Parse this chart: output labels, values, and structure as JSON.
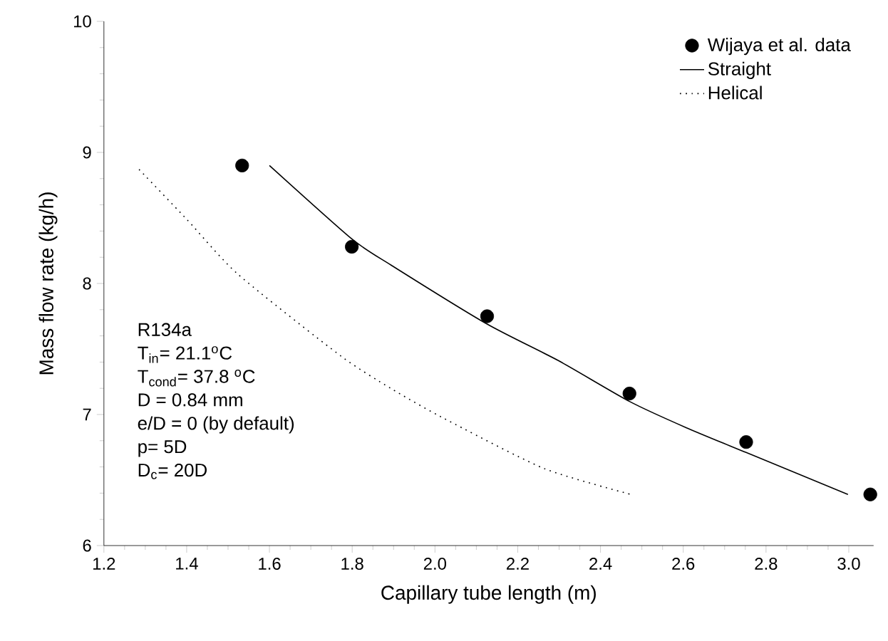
{
  "chart_data": {
    "type": "line",
    "xlabel": "Capillary tube length (m)",
    "ylabel": "Mass flow rate (kg/h)",
    "xlim": [
      1.2,
      3.06
    ],
    "ylim": [
      6,
      10
    ],
    "xticks": [
      {
        "value": 1.2,
        "label": "1.2"
      },
      {
        "value": 1.4,
        "label": "1.4"
      },
      {
        "value": 1.6,
        "label": "1.6"
      },
      {
        "value": 1.8,
        "label": "1.8"
      },
      {
        "value": 2.0,
        "label": "2.0"
      },
      {
        "value": 2.2,
        "label": "2.2"
      },
      {
        "value": 2.4,
        "label": "2.4"
      },
      {
        "value": 2.6,
        "label": "2.6"
      },
      {
        "value": 2.8,
        "label": "2.8"
      },
      {
        "value": 3.0,
        "label": "3.0"
      }
    ],
    "yticks": [
      6,
      7,
      8,
      9,
      10
    ],
    "legend": "top right",
    "series": [
      {
        "name": "Wijaya et al. data",
        "type": "scatter",
        "marker": "circle",
        "color": "#000000",
        "x": [
          1.534,
          1.799,
          2.126,
          2.47,
          2.752,
          3.052
        ],
        "values": [
          8.9,
          8.28,
          7.75,
          7.16,
          6.79,
          6.39
        ]
      },
      {
        "name": "Straight",
        "marker": "none",
        "line_style": "solid",
        "color": "#000000",
        "x": [
          1.6,
          1.799,
          1.894,
          2.126,
          2.299,
          2.47,
          2.607,
          2.752,
          2.998
        ],
        "values": [
          8.9,
          8.34,
          8.14,
          7.69,
          7.41,
          7.1,
          6.9,
          6.71,
          6.39
        ]
      },
      {
        "name": "Helical",
        "marker": "none",
        "line_style": "dotted",
        "color": "#000000",
        "x": [
          1.285,
          1.4,
          1.524,
          1.771,
          1.893,
          2.016,
          2.262,
          2.474
        ],
        "values": [
          8.87,
          8.49,
          8.07,
          7.45,
          7.2,
          6.98,
          6.59,
          6.39
        ]
      }
    ],
    "annotations": [
      "R134a",
      "T$_{in}$= 21.1$^{o}$C",
      "T$_{cond}$= 37.8 $^{o}$C",
      "D = 0.84 mm",
      "e/D = 0 (by default)",
      "p= 5D",
      "D$_{c}$= 20D"
    ]
  }
}
